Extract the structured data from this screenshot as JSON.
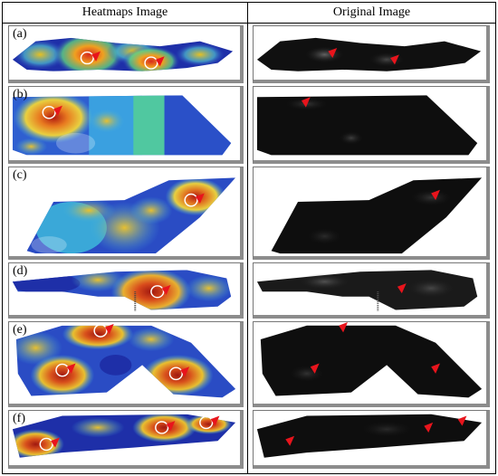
{
  "headers": {
    "left": "Heatmaps Image",
    "right": "Original Image"
  },
  "rows": [
    {
      "label": "(a)",
      "heat_markers": 2,
      "orig_markers": 2
    },
    {
      "label": "(b)",
      "heat_markers": 1,
      "orig_markers": 1
    },
    {
      "label": "(c)",
      "heat_markers": 1,
      "orig_markers": 1
    },
    {
      "label": "(d)",
      "heat_markers": 1,
      "orig_markers": 1
    },
    {
      "label": "(e)",
      "heat_markers": 3,
      "orig_markers": 3
    },
    {
      "label": "(f)",
      "heat_markers": 3,
      "orig_markers": 3
    }
  ],
  "colors": {
    "marker": "#e8141c",
    "circle": "#ffffff",
    "cell_shadow": "#8c8c8c",
    "heat_low": "#1a2a9c",
    "heat_mid": "#3ad0a0",
    "heat_high": "#d8251c"
  }
}
